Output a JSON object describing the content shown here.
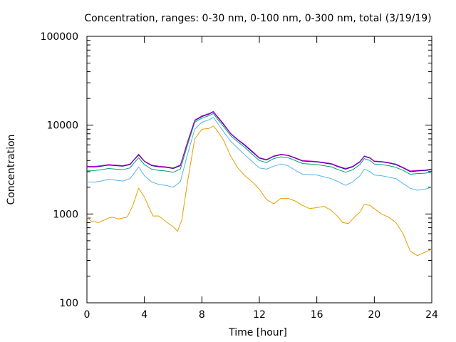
{
  "chart_data": {
    "type": "line",
    "title": "Concentration, ranges: 0-30 nm, 0-100 nm, 0-300 nm, total (3/19/19)",
    "xlabel": "Time [hour]",
    "ylabel": "Concentration",
    "xlim": [
      0,
      24
    ],
    "ylim": [
      100,
      100000
    ],
    "yscale": "log",
    "x_ticks": [
      "0",
      "4",
      "8",
      "12",
      "16",
      "20",
      "24"
    ],
    "y_ticks": [
      "100",
      "1000",
      "10000",
      "100000"
    ],
    "grid": false,
    "series": [
      {
        "color": "#e69f00",
        "x": [
          0,
          0.3,
          0.8,
          1.5,
          1.8,
          2.2,
          2.8,
          3.2,
          3.6,
          4.0,
          4.3,
          4.6,
          5.0,
          5.5,
          6.0,
          6.3,
          6.6,
          7.0,
          7.5,
          8.0,
          8.5,
          8.8,
          9.0,
          9.5,
          10.0,
          10.5,
          11.0,
          11.5,
          12.0,
          12.5,
          13.0,
          13.5,
          14.0,
          14.5,
          15.0,
          15.5,
          16.0,
          16.5,
          17.0,
          17.5,
          17.8,
          18.2,
          18.7,
          19.0,
          19.3,
          19.7,
          20.0,
          20.5,
          21.0,
          21.5,
          22.0,
          22.5,
          23.0,
          23.5,
          24.0
        ],
        "y": [
          920,
          830,
          800,
          900,
          920,
          880,
          920,
          1250,
          1950,
          1550,
          1200,
          950,
          950,
          820,
          720,
          640,
          850,
          2300,
          7000,
          9000,
          9200,
          9800,
          9000,
          6800,
          4500,
          3300,
          2700,
          2300,
          1900,
          1450,
          1300,
          1500,
          1500,
          1400,
          1250,
          1150,
          1180,
          1220,
          1100,
          920,
          800,
          780,
          950,
          1050,
          1280,
          1250,
          1150,
          1000,
          920,
          800,
          600,
          380,
          340,
          370,
          400
        ]
      },
      {
        "color": "#56b4e9",
        "x": [
          0,
          0.5,
          1.0,
          1.5,
          2.0,
          2.5,
          3.0,
          3.3,
          3.6,
          4.0,
          4.5,
          5.0,
          5.5,
          6.0,
          6.5,
          7.0,
          7.5,
          8.0,
          8.5,
          8.8,
          9.0,
          9.5,
          10.0,
          10.5,
          11.0,
          11.5,
          12.0,
          12.5,
          13.0,
          13.5,
          14.0,
          14.5,
          15.0,
          16.0,
          17.0,
          17.5,
          18.0,
          18.5,
          19.0,
          19.3,
          19.7,
          20.0,
          20.5,
          21.0,
          21.5,
          22.0,
          22.5,
          23.0,
          23.5,
          24.0
        ],
        "y": [
          2300,
          2280,
          2350,
          2450,
          2400,
          2350,
          2500,
          2900,
          3400,
          2700,
          2300,
          2150,
          2100,
          2000,
          2300,
          4700,
          9000,
          10800,
          11500,
          12200,
          11000,
          8500,
          6600,
          5500,
          4600,
          3900,
          3300,
          3200,
          3450,
          3650,
          3500,
          3100,
          2800,
          2750,
          2500,
          2300,
          2100,
          2300,
          2700,
          3200,
          3000,
          2750,
          2700,
          2600,
          2500,
          2200,
          1950,
          1850,
          1900,
          2000
        ]
      },
      {
        "color": "#009e73",
        "x": [
          0,
          0.5,
          1.0,
          1.5,
          2.0,
          2.5,
          3.0,
          3.3,
          3.6,
          4.0,
          4.5,
          5.0,
          5.5,
          6.0,
          6.5,
          7.0,
          7.5,
          8.0,
          8.5,
          8.8,
          9.0,
          9.5,
          10.0,
          10.5,
          11.0,
          11.5,
          12.0,
          12.5,
          13.0,
          13.5,
          14.0,
          14.5,
          15.0,
          16.0,
          17.0,
          17.5,
          18.0,
          18.5,
          19.0,
          19.3,
          19.7,
          20.0,
          20.5,
          21.0,
          21.5,
          22.0,
          22.5,
          23.0,
          23.5,
          24.0
        ],
        "y": [
          3100,
          3080,
          3150,
          3250,
          3200,
          3150,
          3300,
          3800,
          4300,
          3600,
          3200,
          3100,
          3050,
          2950,
          3200,
          6000,
          10800,
          12000,
          12800,
          13500,
          12200,
          9700,
          7600,
          6500,
          5600,
          4700,
          4000,
          3800,
          4200,
          4400,
          4300,
          4000,
          3700,
          3600,
          3400,
          3150,
          2950,
          3150,
          3600,
          4200,
          4000,
          3650,
          3600,
          3500,
          3350,
          3100,
          2800,
          2850,
          2880,
          2950
        ]
      },
      {
        "color": "#0000aa",
        "x": [
          0,
          0.5,
          1.0,
          1.5,
          2.0,
          2.5,
          3.0,
          3.3,
          3.6,
          4.0,
          4.5,
          5.0,
          5.5,
          6.0,
          6.5,
          7.0,
          7.5,
          8.0,
          8.5,
          8.8,
          9.0,
          9.5,
          10.0,
          10.5,
          11.0,
          11.5,
          12.0,
          12.5,
          13.0,
          13.5,
          14.0,
          14.5,
          15.0,
          16.0,
          17.0,
          17.5,
          18.0,
          18.5,
          19.0,
          19.3,
          19.7,
          20.0,
          20.5,
          21.0,
          21.5,
          22.0,
          22.5,
          23.0,
          23.5,
          24.0
        ],
        "y": [
          3400,
          3380,
          3450,
          3550,
          3500,
          3450,
          3600,
          4100,
          4600,
          3900,
          3500,
          3400,
          3350,
          3250,
          3500,
          6400,
          11200,
          12500,
          13300,
          14100,
          12800,
          10200,
          8000,
          6800,
          5900,
          5000,
          4250,
          4050,
          4450,
          4650,
          4550,
          4250,
          3950,
          3850,
          3650,
          3400,
          3200,
          3400,
          3850,
          4450,
          4250,
          3900,
          3850,
          3750,
          3600,
          3300,
          3000,
          3050,
          3080,
          3150
        ]
      },
      {
        "color": "#c000c0",
        "x": [
          0,
          0.5,
          1.0,
          1.5,
          2.0,
          2.5,
          3.0,
          3.3,
          3.6,
          4.0,
          4.5,
          5.0,
          5.5,
          6.0,
          6.5,
          7.0,
          7.5,
          8.0,
          8.5,
          8.8,
          9.0,
          9.5,
          10.0,
          10.5,
          11.0,
          11.5,
          12.0,
          12.5,
          13.0,
          13.5,
          14.0,
          14.5,
          15.0,
          16.0,
          17.0,
          17.5,
          18.0,
          18.5,
          19.0,
          19.3,
          19.7,
          20.0,
          20.5,
          21.0,
          21.5,
          22.0,
          22.5,
          23.0,
          23.5,
          24.0
        ],
        "y": [
          3450,
          3430,
          3500,
          3600,
          3550,
          3500,
          3650,
          4150,
          4700,
          3950,
          3550,
          3450,
          3400,
          3300,
          3550,
          6500,
          11400,
          12700,
          13500,
          14300,
          13000,
          10400,
          8100,
          6900,
          6000,
          5100,
          4300,
          4100,
          4500,
          4700,
          4600,
          4300,
          4000,
          3900,
          3700,
          3450,
          3250,
          3450,
          3900,
          4500,
          4300,
          3950,
          3900,
          3800,
          3650,
          3350,
          3050,
          3100,
          3120,
          3200
        ]
      }
    ]
  }
}
